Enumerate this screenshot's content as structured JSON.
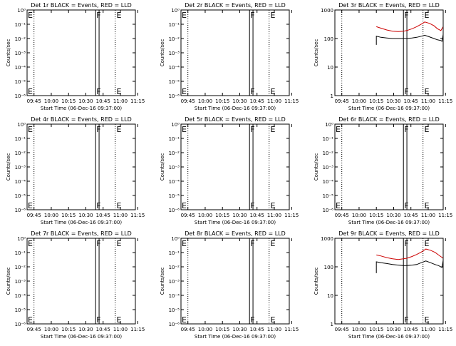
{
  "colors": {
    "events": "#000000",
    "lld": "#cc0000",
    "background": "#ffffff"
  },
  "chart_data": [
    {
      "type": "line",
      "title": "Det 1r BLACK = Events, RED = LLD",
      "xlabel": "Start Time (06-Dec-16 09:37:00)",
      "ylabel": "Counts/sec",
      "x_ticks": [
        "09:45",
        "10:00",
        "10:15",
        "10:30",
        "10:45",
        "11:00",
        "11:15"
      ],
      "x_range_min": [
        2,
        96
      ],
      "x_tick_values": [
        8,
        23,
        38,
        53,
        68,
        83,
        98
      ],
      "y_scale": "log",
      "y_ticks": [
        "10⁰",
        "10⁻¹",
        "10⁻²",
        "10⁻³",
        "10⁻⁴",
        "10⁻⁵",
        "10⁻⁶"
      ],
      "y_tick_exponents": [
        0,
        -1,
        -2,
        -3,
        -4,
        -5,
        -6
      ],
      "flags": [
        {
          "label": "E",
          "x": 2
        },
        {
          "label": "F",
          "x": 61.5
        },
        {
          "label": "E",
          "x": 79
        }
      ],
      "bands": [
        [
          61.5,
          64.5
        ]
      ],
      "grid_lines_x": [
        8,
        78.5
      ],
      "series": []
    },
    {
      "type": "line",
      "title": "Det 2r BLACK = Events, RED = LLD",
      "xlabel": "Start Time (06-Dec-16 09:37:00)",
      "ylabel": "Counts/sec",
      "x_ticks": [
        "09:45",
        "10:00",
        "10:15",
        "10:30",
        "10:45",
        "11:00",
        "11:15"
      ],
      "x_range_min": [
        2,
        96
      ],
      "x_tick_values": [
        8,
        23,
        38,
        53,
        68,
        83,
        98
      ],
      "y_scale": "log",
      "y_ticks": [
        "10⁰",
        "10⁻¹",
        "10⁻²",
        "10⁻³",
        "10⁻⁴",
        "10⁻⁵",
        "10⁻⁶"
      ],
      "y_tick_exponents": [
        0,
        -1,
        -2,
        -3,
        -4,
        -5,
        -6
      ],
      "flags": [
        {
          "label": "E",
          "x": 2
        },
        {
          "label": "F",
          "x": 61.5
        },
        {
          "label": "E",
          "x": 79
        }
      ],
      "bands": [
        [
          61.5,
          64.5
        ]
      ],
      "grid_lines_x": [
        8,
        78.5
      ],
      "series": []
    },
    {
      "type": "line",
      "title": "Det 3r BLACK = Events, RED = LLD",
      "xlabel": "Start Time (06-Dec-16 09:37:00)",
      "ylabel": "Counts/sec",
      "x_ticks": [
        "09:45",
        "10:00",
        "10:15",
        "10:30",
        "10:45",
        "11:00",
        "11:15"
      ],
      "x_range_min": [
        2,
        96
      ],
      "x_tick_values": [
        8,
        23,
        38,
        53,
        68,
        83,
        98
      ],
      "y_scale": "log",
      "y_ticks": [
        "1000",
        "100",
        "10",
        "1"
      ],
      "y_tick_exponents": [
        3,
        2,
        1,
        0
      ],
      "flags": [
        {
          "label": "F",
          "x": 61.5
        },
        {
          "label": "E",
          "x": 79
        }
      ],
      "bands": [
        [
          61.5,
          64.5
        ]
      ],
      "grid_lines_x": [
        8,
        78.5
      ],
      "series": [
        {
          "name": "LLD",
          "color": "#cc0000",
          "x": [
            38,
            42,
            47,
            52,
            57,
            61.5,
            64.5,
            69,
            73,
            77,
            80,
            84,
            88,
            91,
            94,
            96
          ],
          "y": [
            260,
            230,
            200,
            180,
            175,
            180,
            190,
            220,
            260,
            320,
            380,
            340,
            280,
            220,
            190,
            260
          ]
        },
        {
          "name": "Events",
          "color": "#000000",
          "x": [
            38,
            38,
            42,
            47,
            52,
            57,
            61.5,
            64.5,
            69,
            73,
            77,
            80,
            84,
            88,
            91,
            94,
            95,
            96
          ],
          "y": [
            60,
            120,
            110,
            105,
            100,
            100,
            100,
            100,
            105,
            110,
            120,
            130,
            115,
            100,
            90,
            85,
            80,
            140
          ]
        }
      ]
    },
    {
      "type": "line",
      "title": "Det 4r BLACK = Events, RED = LLD",
      "xlabel": "Start Time (06-Dec-16 09:37:00)",
      "ylabel": "Counts/sec",
      "x_ticks": [
        "09:45",
        "10:00",
        "10:15",
        "10:30",
        "10:45",
        "11:00",
        "11:15"
      ],
      "x_range_min": [
        2,
        96
      ],
      "x_tick_values": [
        8,
        23,
        38,
        53,
        68,
        83,
        98
      ],
      "y_scale": "log",
      "y_ticks": [
        "10⁰",
        "10⁻¹",
        "10⁻²",
        "10⁻³",
        "10⁻⁴",
        "10⁻⁵",
        "10⁻⁶"
      ],
      "y_tick_exponents": [
        0,
        -1,
        -2,
        -3,
        -4,
        -5,
        -6
      ],
      "flags": [
        {
          "label": "E",
          "x": 2
        },
        {
          "label": "F",
          "x": 61.5
        },
        {
          "label": "E",
          "x": 79
        }
      ],
      "bands": [
        [
          61.5,
          64.5
        ]
      ],
      "grid_lines_x": [
        8,
        78.5
      ],
      "series": []
    },
    {
      "type": "line",
      "title": "Det 5r BLACK = Events, RED = LLD",
      "xlabel": "Start Time (06-Dec-16 09:37:00)",
      "ylabel": "Counts/sec",
      "x_ticks": [
        "09:45",
        "10:00",
        "10:15",
        "10:30",
        "10:45",
        "11:00",
        "11:15"
      ],
      "x_range_min": [
        2,
        96
      ],
      "x_tick_values": [
        8,
        23,
        38,
        53,
        68,
        83,
        98
      ],
      "y_scale": "log",
      "y_ticks": [
        "10⁰",
        "10⁻¹",
        "10⁻²",
        "10⁻³",
        "10⁻⁴",
        "10⁻⁵",
        "10⁻⁶"
      ],
      "y_tick_exponents": [
        0,
        -1,
        -2,
        -3,
        -4,
        -5,
        -6
      ],
      "flags": [
        {
          "label": "E",
          "x": 2
        },
        {
          "label": "F",
          "x": 61.5
        },
        {
          "label": "E",
          "x": 79
        }
      ],
      "bands": [
        [
          61.5,
          64.5
        ]
      ],
      "grid_lines_x": [
        8,
        78.5
      ],
      "series": []
    },
    {
      "type": "line",
      "title": "Det 6r BLACK = Events, RED = LLD",
      "xlabel": "Start Time (06-Dec-16 09:37:00)",
      "ylabel": "Counts/sec",
      "x_ticks": [
        "09:45",
        "10:00",
        "10:15",
        "10:30",
        "10:45",
        "11:00",
        "11:15"
      ],
      "x_range_min": [
        2,
        96
      ],
      "x_tick_values": [
        8,
        23,
        38,
        53,
        68,
        83,
        98
      ],
      "y_scale": "log",
      "y_ticks": [
        "10⁰",
        "10⁻¹",
        "10⁻²",
        "10⁻³",
        "10⁻⁴",
        "10⁻⁵",
        "10⁻⁶"
      ],
      "y_tick_exponents": [
        0,
        -1,
        -2,
        -3,
        -4,
        -5,
        -6
      ],
      "flags": [
        {
          "label": "E",
          "x": 2
        },
        {
          "label": "F",
          "x": 61.5
        },
        {
          "label": "E",
          "x": 79
        }
      ],
      "bands": [
        [
          61.5,
          64.5
        ]
      ],
      "grid_lines_x": [
        8,
        78.5
      ],
      "series": []
    },
    {
      "type": "line",
      "title": "Det 7r BLACK = Events, RED = LLD",
      "xlabel": "Start Time (06-Dec-16 09:37:00)",
      "ylabel": "Counts/sec",
      "x_ticks": [
        "09:45",
        "10:00",
        "10:15",
        "10:30",
        "10:45",
        "11:00",
        "11:15"
      ],
      "x_range_min": [
        2,
        96
      ],
      "x_tick_values": [
        8,
        23,
        38,
        53,
        68,
        83,
        98
      ],
      "y_scale": "log",
      "y_ticks": [
        "10⁰",
        "10⁻¹",
        "10⁻²",
        "10⁻³",
        "10⁻⁴",
        "10⁻⁵",
        "10⁻⁶"
      ],
      "y_tick_exponents": [
        0,
        -1,
        -2,
        -3,
        -4,
        -5,
        -6
      ],
      "flags": [
        {
          "label": "E",
          "x": 2
        },
        {
          "label": "F",
          "x": 61.5
        },
        {
          "label": "E",
          "x": 79
        }
      ],
      "bands": [
        [
          61.5,
          64.5
        ]
      ],
      "grid_lines_x": [
        8,
        78.5
      ],
      "series": []
    },
    {
      "type": "line",
      "title": "Det 8r BLACK = Events, RED = LLD",
      "xlabel": "Start Time (06-Dec-16 09:37:00)",
      "ylabel": "Counts/sec",
      "x_ticks": [
        "09:45",
        "10:00",
        "10:15",
        "10:30",
        "10:45",
        "11:00",
        "11:15"
      ],
      "x_range_min": [
        2,
        96
      ],
      "x_tick_values": [
        8,
        23,
        38,
        53,
        68,
        83,
        98
      ],
      "y_scale": "log",
      "y_ticks": [
        "10⁰",
        "10⁻¹",
        "10⁻²",
        "10⁻³",
        "10⁻⁴",
        "10⁻⁵",
        "10⁻⁶"
      ],
      "y_tick_exponents": [
        0,
        -1,
        -2,
        -3,
        -4,
        -5,
        -6
      ],
      "flags": [
        {
          "label": "E",
          "x": 2
        },
        {
          "label": "F",
          "x": 61.5
        },
        {
          "label": "E",
          "x": 79
        }
      ],
      "bands": [
        [
          61.5,
          64.5
        ]
      ],
      "grid_lines_x": [
        8,
        78.5
      ],
      "series": []
    },
    {
      "type": "line",
      "title": "Det 9r BLACK = Events, RED = LLD",
      "xlabel": "Start Time (06-Dec-16 09:37:00)",
      "ylabel": "Counts/sec",
      "x_ticks": [
        "09:45",
        "10:00",
        "10:15",
        "10:30",
        "10:45",
        "11:00",
        "11:15"
      ],
      "x_range_min": [
        2,
        96
      ],
      "x_tick_values": [
        8,
        23,
        38,
        53,
        68,
        83,
        98
      ],
      "y_scale": "log",
      "y_ticks": [
        "1000",
        "100",
        "10",
        "1"
      ],
      "y_tick_exponents": [
        3,
        2,
        1,
        0
      ],
      "flags": [
        {
          "label": "F",
          "x": 61.5
        },
        {
          "label": "E",
          "x": 79
        }
      ],
      "bands": [
        [
          61.5,
          64.5
        ]
      ],
      "grid_lines_x": [
        8,
        78.5
      ],
      "series": [
        {
          "name": "LLD",
          "color": "#cc0000",
          "x": [
            38,
            42,
            47,
            52,
            57,
            61.5,
            64.5,
            69,
            73,
            77,
            81,
            85,
            89,
            92,
            96
          ],
          "y": [
            260,
            240,
            210,
            190,
            180,
            190,
            200,
            230,
            270,
            330,
            420,
            380,
            320,
            260,
            200
          ]
        },
        {
          "name": "Events",
          "color": "#000000",
          "x": [
            38,
            38,
            42,
            47,
            52,
            57,
            61.5,
            64.5,
            69,
            73,
            77,
            81,
            85,
            89,
            92,
            95,
            96
          ],
          "y": [
            60,
            150,
            140,
            130,
            120,
            115,
            110,
            110,
            115,
            120,
            140,
            160,
            140,
            120,
            110,
            95,
            170
          ]
        }
      ]
    }
  ]
}
